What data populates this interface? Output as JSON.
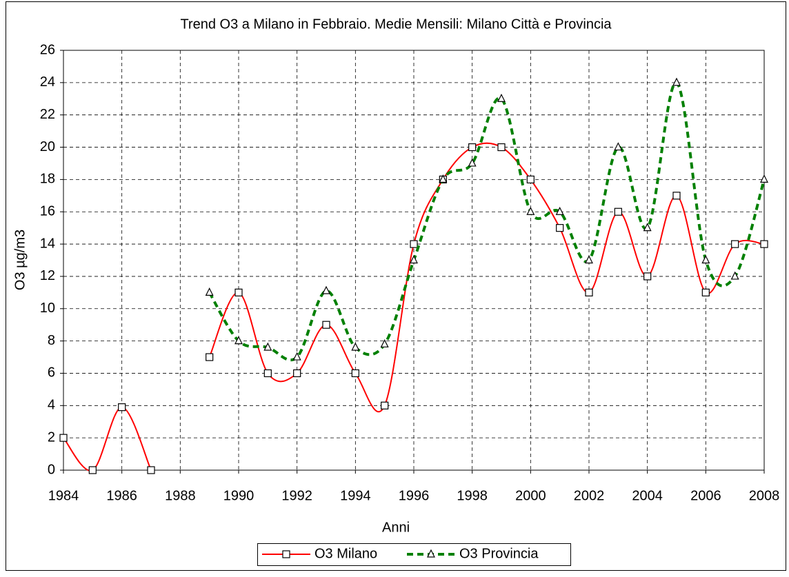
{
  "chart_data": {
    "type": "line",
    "title": "Trend O3 a Milano in Febbraio. Medie Mensili: Milano Città e Provincia",
    "xlabel": "Anni",
    "ylabel": "O3 µg/m3",
    "x": [
      1984,
      1985,
      1986,
      1987,
      1988,
      1989,
      1990,
      1991,
      1992,
      1993,
      1994,
      1995,
      1996,
      1997,
      1998,
      1999,
      2000,
      2001,
      2002,
      2003,
      2004,
      2005,
      2006,
      2007,
      2008
    ],
    "series": [
      {
        "name": "O3 Milano",
        "color": "#ff0000",
        "values": [
          2,
          0,
          3.9,
          0,
          null,
          7,
          11,
          6,
          6,
          9,
          6,
          4,
          14,
          18,
          20,
          20,
          18,
          15,
          11,
          16,
          12,
          17,
          11,
          14,
          14
        ]
      },
      {
        "name": "O3 Provincia",
        "color": "#008000",
        "values": [
          null,
          null,
          null,
          null,
          null,
          11,
          8,
          7.6,
          7,
          11.1,
          7.6,
          7.8,
          13,
          18,
          19,
          23,
          16,
          16,
          13,
          20,
          15,
          24,
          13,
          12,
          18
        ]
      }
    ],
    "xlim": [
      1984,
      2008
    ],
    "xticks": [
      1984,
      1986,
      1988,
      1990,
      1992,
      1994,
      1996,
      1998,
      2000,
      2002,
      2004,
      2006,
      2008
    ],
    "ylim": [
      0,
      26
    ],
    "yticks": [
      0,
      2,
      4,
      6,
      8,
      10,
      12,
      14,
      16,
      18,
      20,
      22,
      24,
      26
    ],
    "grid": true,
    "legend": "bottom"
  }
}
